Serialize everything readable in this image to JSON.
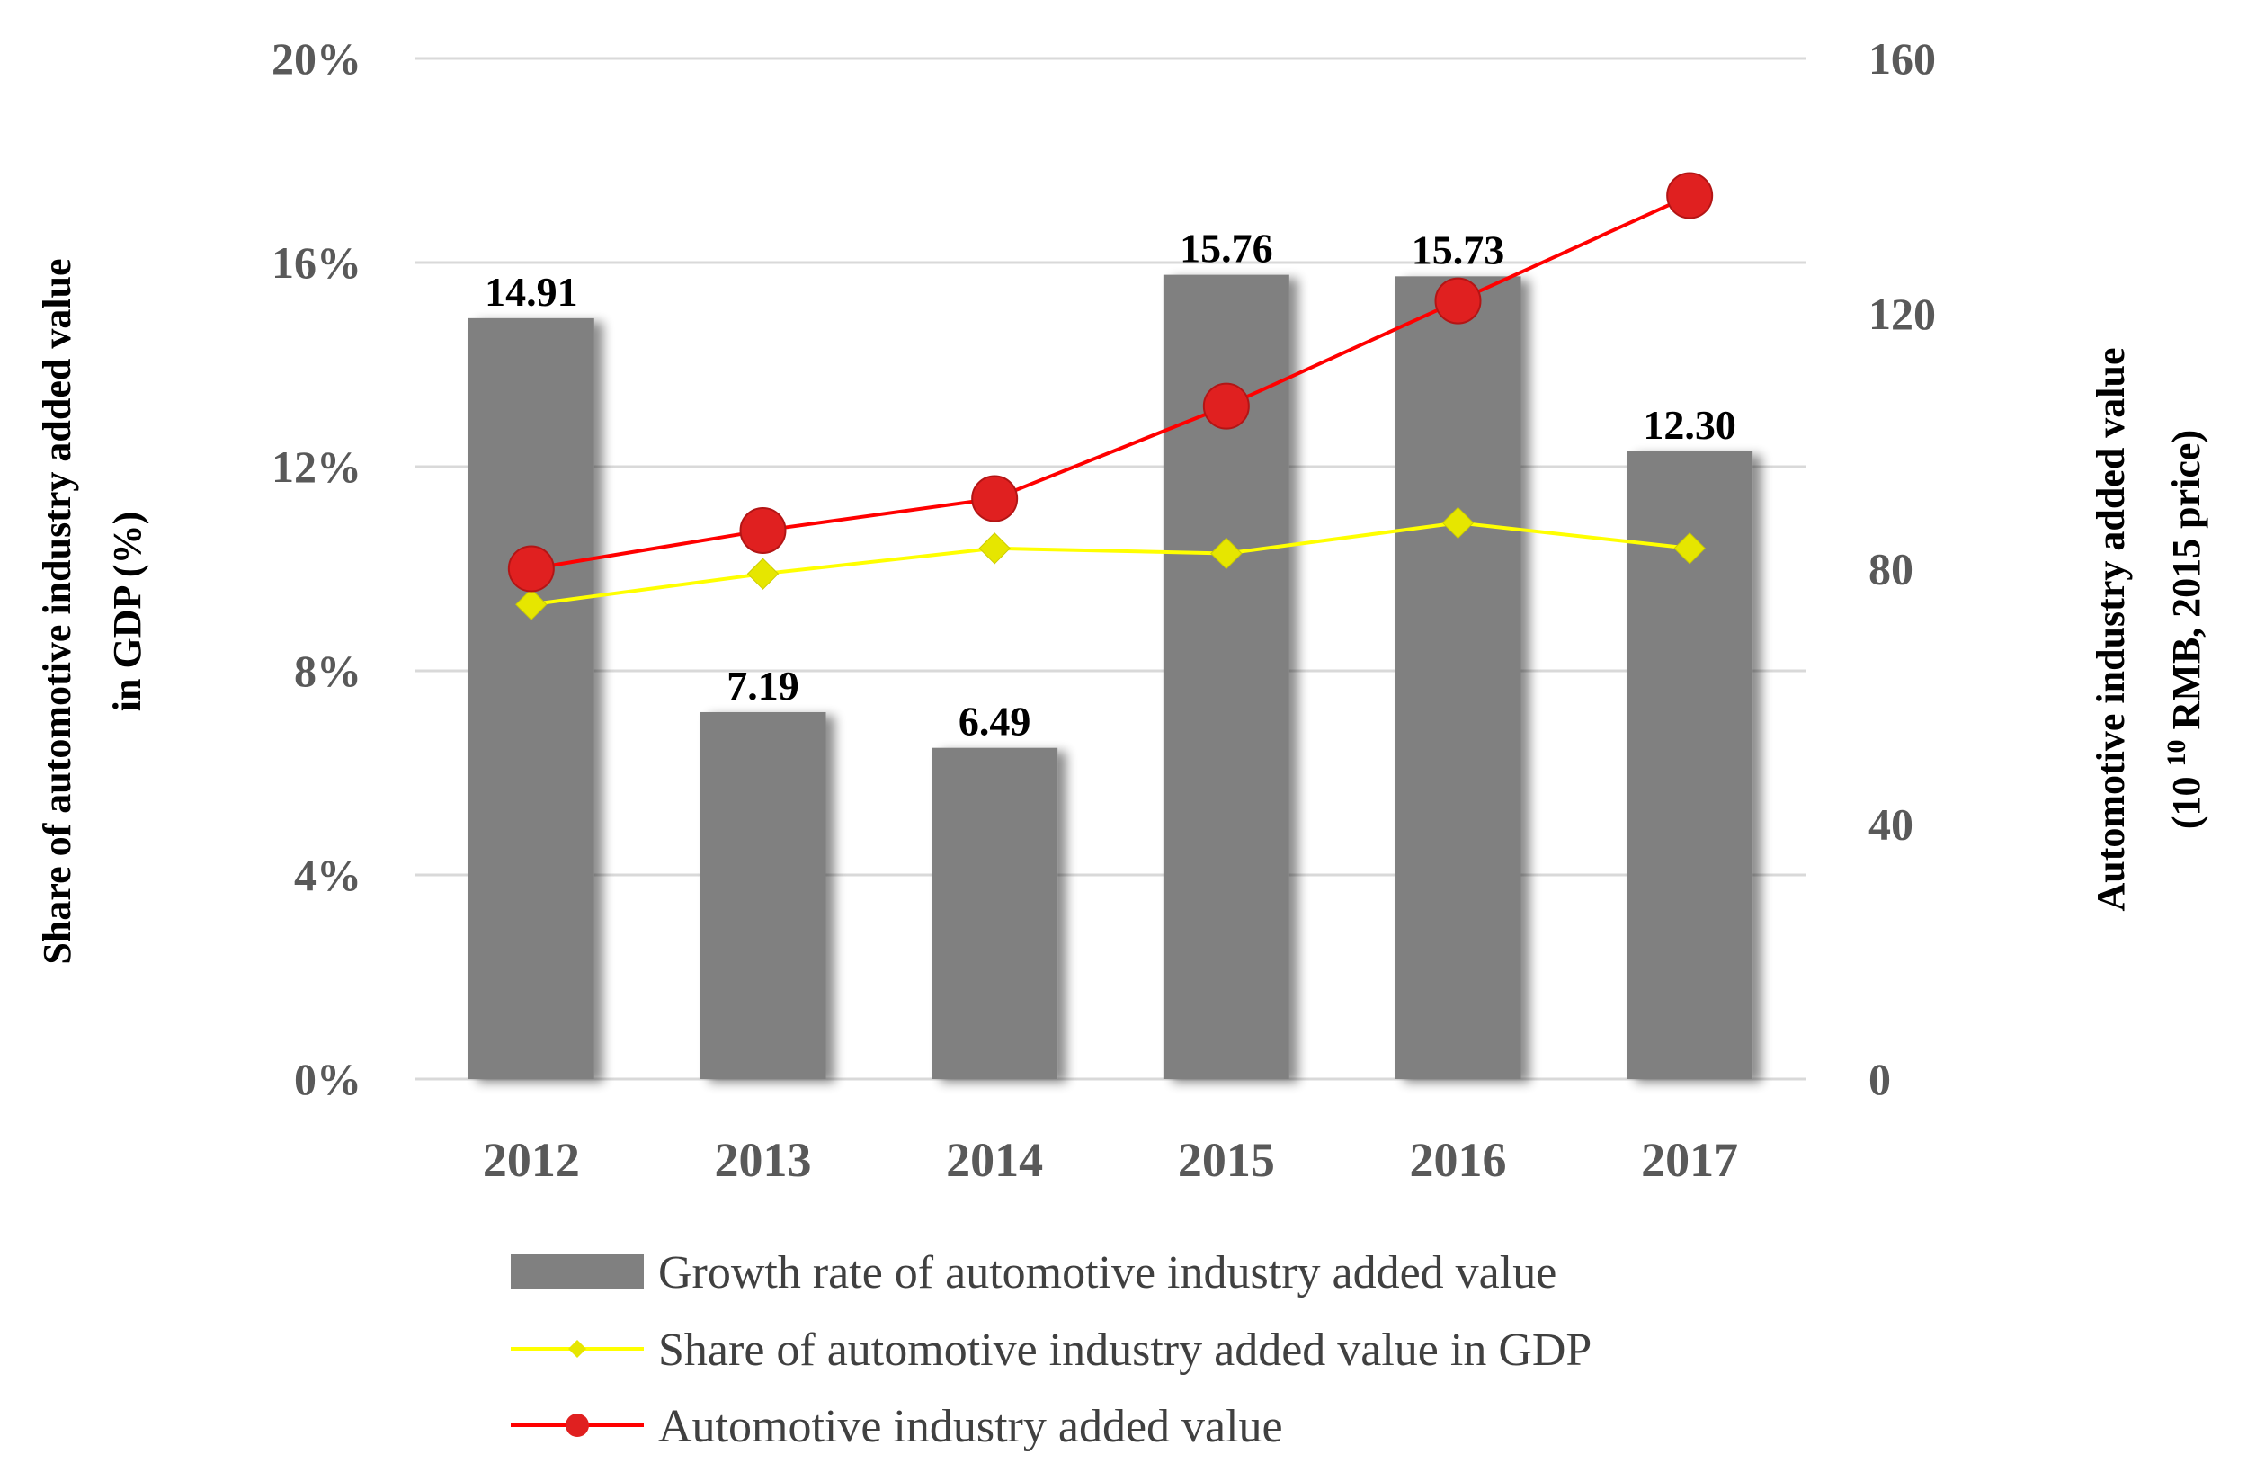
{
  "chart_data": {
    "type": "bar",
    "categories": [
      "2012",
      "2013",
      "2014",
      "2015",
      "2016",
      "2017"
    ],
    "series": [
      {
        "name": "Growth rate of automotive industry added value",
        "kind": "bar",
        "axis": "left",
        "values": [
          14.91,
          7.19,
          6.49,
          15.76,
          15.73,
          12.3
        ],
        "labels": [
          "14.91",
          "7.19",
          "6.49",
          "15.76",
          "15.73",
          "12.30"
        ],
        "color": "#808080"
      },
      {
        "name": "Share of automotive industry added value in GDP",
        "kind": "line",
        "marker": "diamond",
        "axis": "left",
        "values": [
          9.3,
          9.9,
          10.4,
          10.3,
          10.9,
          10.4
        ],
        "color": "#ffff00",
        "marker_color": "#e6e600"
      },
      {
        "name": "Automotive industry added value",
        "kind": "line",
        "marker": "circle",
        "axis": "right",
        "values": [
          80,
          86,
          91,
          105.5,
          122,
          138.5
        ],
        "color": "#ff0000",
        "marker_color": "#e02020"
      }
    ],
    "left_axis": {
      "title_line1": "Share of automotive industry added value",
      "title_line2": "in GDP (%)",
      "ylim": [
        0,
        20
      ],
      "ticks": [
        0,
        4,
        8,
        12,
        16,
        20
      ],
      "tick_labels": [
        "0%",
        "4%",
        "8%",
        "12%",
        "16%",
        "20%"
      ]
    },
    "right_axis": {
      "title_line1": "Automotive industry added value",
      "title_line2_prefix": "(10 ",
      "title_line2_sup": "10",
      "title_line2_suffix": " RMB, 2015 price)",
      "ylim": [
        0,
        160
      ],
      "ticks": [
        0,
        40,
        80,
        120,
        160
      ],
      "tick_labels": [
        "0",
        "40",
        "80",
        "120",
        "160"
      ]
    },
    "grid": true,
    "grid_color": "#d9d9d9",
    "legend_position": "bottom"
  }
}
